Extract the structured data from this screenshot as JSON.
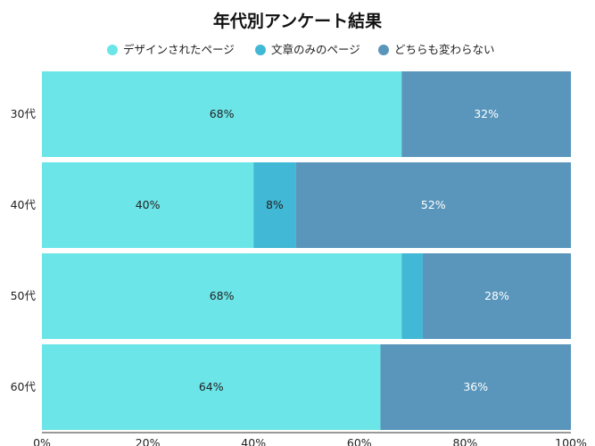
{
  "chart_data": {
    "type": "bar",
    "orientation": "horizontal",
    "stacked": "percent",
    "title": "年代別アンケート結果",
    "categories": [
      "30代",
      "40代",
      "50代",
      "60代"
    ],
    "series": [
      {
        "name": "デザインされたページ",
        "color": "#6ce5e8",
        "values": [
          68,
          40,
          68,
          64
        ],
        "labels": [
          "68%",
          "40%",
          "68%",
          "64%"
        ]
      },
      {
        "name": "文章のみのページ",
        "color": "#41b8d5",
        "values": [
          0,
          8,
          4,
          0
        ],
        "labels": [
          "",
          "8%",
          "",
          ""
        ]
      },
      {
        "name": "どちらも変わらない",
        "color": "#5a96bc",
        "values": [
          32,
          52,
          28,
          36
        ],
        "labels": [
          "32%",
          "52%",
          "28%",
          "36%"
        ]
      }
    ],
    "xlim": [
      0,
      100
    ],
    "xticks": [
      0,
      20,
      40,
      60,
      80,
      100
    ],
    "xtick_labels": [
      "0%",
      "20%",
      "40%",
      "60%",
      "80%",
      "100%"
    ],
    "legend_position": "top",
    "grid": false
  }
}
